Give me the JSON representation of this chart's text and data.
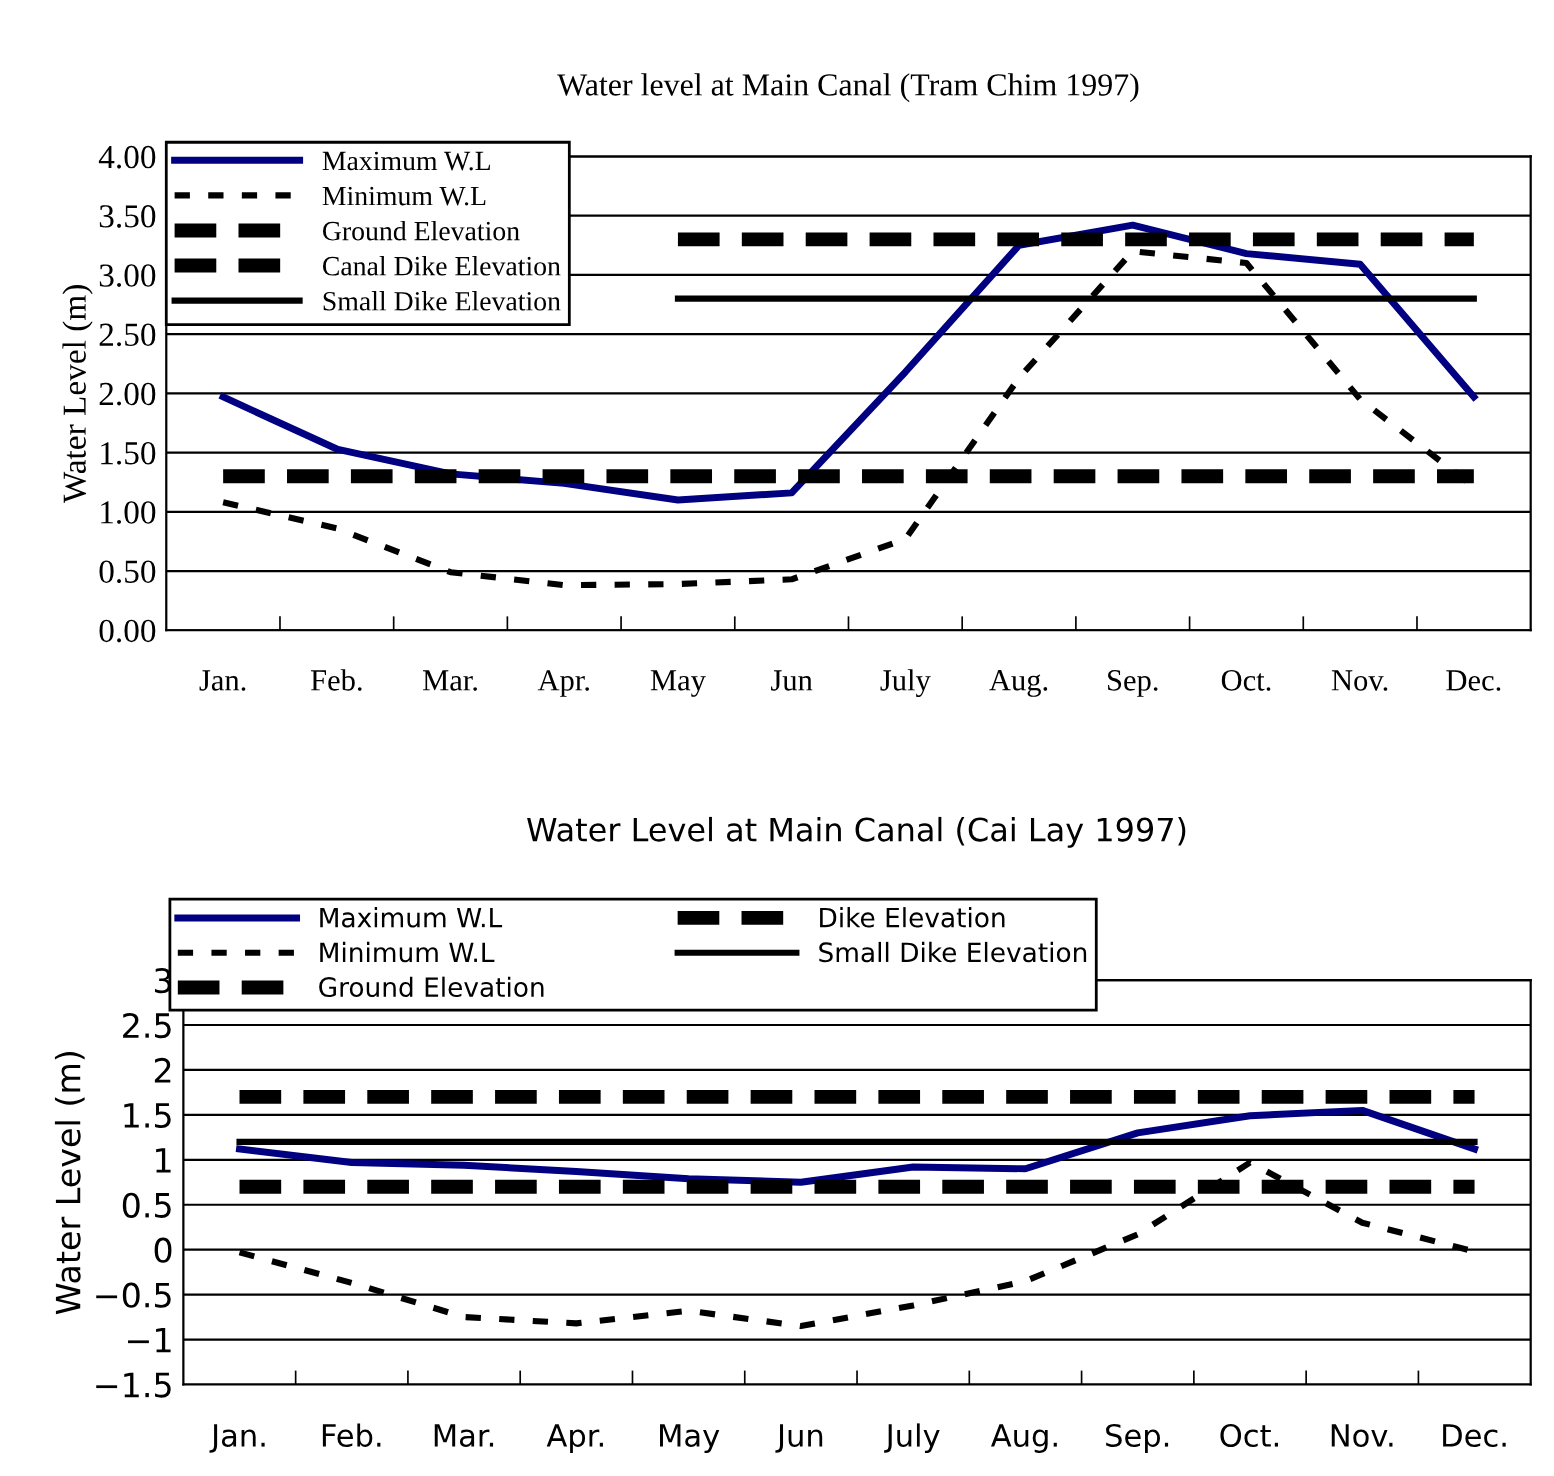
{
  "chart_data": [
    {
      "type": "line",
      "title": "Water level at Main Canal (Tram Chim 1997)",
      "ylabel": "Water Level (m)",
      "categories": [
        "Jan.",
        "Feb.",
        "Mar.",
        "Apr.",
        "May",
        "Jun",
        "July",
        "Aug.",
        "Sep.",
        "Oct.",
        "Nov.",
        "Dec."
      ],
      "series": [
        {
          "name": "Maximum W.L",
          "color": "#000080",
          "line_style": "solid",
          "values": [
            1.97,
            1.53,
            1.32,
            1.24,
            1.1,
            1.16,
            2.18,
            3.25,
            3.42,
            3.18,
            3.09,
            1.97
          ]
        },
        {
          "name": "Minimum W.L",
          "color": "#000000",
          "line_style": "dotted",
          "values": [
            1.08,
            0.86,
            0.49,
            0.38,
            0.39,
            0.43,
            0.77,
            2.13,
            3.2,
            3.1,
            1.95,
            1.21
          ]
        },
        {
          "name": "Ground Elevation",
          "color": "#000000",
          "line_style": "dashed",
          "values": [
            1.3,
            1.3,
            1.3,
            1.3,
            1.3,
            1.3,
            1.3,
            1.3,
            1.3,
            1.3,
            1.3,
            1.3
          ]
        },
        {
          "name": "Canal Dike Elevation",
          "color": "#000000",
          "line_style": "dashed",
          "values": [
            null,
            null,
            null,
            null,
            3.3,
            3.3,
            3.3,
            3.3,
            3.3,
            3.3,
            3.3,
            3.3
          ]
        },
        {
          "name": "Small Dike Elevation",
          "color": "#000000",
          "line_style": "solid",
          "values": [
            null,
            null,
            null,
            null,
            2.8,
            2.8,
            2.8,
            2.8,
            2.8,
            2.8,
            2.8,
            2.8
          ]
        }
      ],
      "ylim": [
        0,
        4
      ],
      "yticks": [
        {
          "value": 0,
          "label": "0.00"
        },
        {
          "value": 0.5,
          "label": "0.50"
        },
        {
          "value": 1,
          "label": "1.00"
        },
        {
          "value": 1.5,
          "label": "1.50"
        },
        {
          "value": 2,
          "label": "2.00"
        },
        {
          "value": 2.5,
          "label": "2.50"
        },
        {
          "value": 3,
          "label": "3.00"
        },
        {
          "value": 3.5,
          "label": "3.50"
        },
        {
          "value": 4,
          "label": "4.00"
        }
      ],
      "grid": "y",
      "legend": "top left",
      "marker": "none"
    },
    {
      "type": "line",
      "title": "Water Level at Main Canal (Cai Lay 1997)",
      "ylabel": "Water Level (m)",
      "categories": [
        "Jan.",
        "Feb.",
        "Mar.",
        "Apr.",
        "May",
        "Jun",
        "July",
        "Aug.",
        "Sep.",
        "Oct.",
        "Nov.",
        "Dec."
      ],
      "series": [
        {
          "name": "Maximum W.L",
          "color": "#000080",
          "line_style": "solid",
          "values": [
            1.12,
            0.97,
            0.94,
            0.87,
            0.79,
            0.75,
            0.92,
            0.9,
            1.3,
            1.49,
            1.55,
            1.12
          ]
        },
        {
          "name": "Minimum W.L",
          "color": "#000000",
          "line_style": "dotted",
          "values": [
            -0.03,
            -0.37,
            -0.75,
            -0.82,
            -0.68,
            -0.85,
            -0.62,
            -0.35,
            0.17,
            0.97,
            0.3,
            -0.02
          ]
        },
        {
          "name": "Ground Elevation",
          "color": "#000000",
          "line_style": "dashed",
          "values": [
            0.7,
            0.7,
            0.7,
            0.7,
            0.7,
            0.7,
            0.7,
            0.7,
            0.7,
            0.7,
            0.7,
            0.7
          ]
        },
        {
          "name": "Dike Elevation",
          "color": "#000000",
          "line_style": "dashed",
          "values": [
            1.7,
            1.7,
            1.7,
            1.7,
            1.7,
            1.7,
            1.7,
            1.7,
            1.7,
            1.7,
            1.7,
            1.7
          ]
        },
        {
          "name": "Small Dike Elevation",
          "color": "#000000",
          "line_style": "solid",
          "values": [
            1.2,
            1.2,
            1.2,
            1.2,
            1.2,
            1.2,
            1.2,
            1.2,
            1.2,
            1.2,
            1.2,
            1.2
          ]
        }
      ],
      "ylim": [
        -1.5,
        3
      ],
      "yticks": [
        {
          "value": -1.5,
          "label": "−1.5"
        },
        {
          "value": -1,
          "label": "−1"
        },
        {
          "value": -0.5,
          "label": "−0.5"
        },
        0,
        0.5,
        1,
        1.5,
        2,
        2.5,
        3
      ],
      "grid": "y",
      "legend": "top left",
      "marker": "none"
    }
  ]
}
